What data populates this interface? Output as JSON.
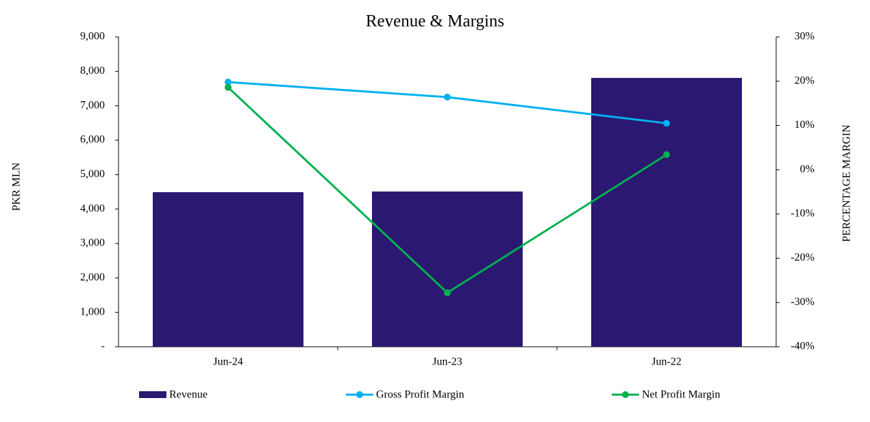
{
  "chart_data": {
    "type": "bar",
    "title": "Revenue  & Margins",
    "y_label": "PKR MLN",
    "y2_label": "PERCENTAGE MARGIN",
    "categories": [
      "Jun-24",
      "Jun-23",
      "Jun-22"
    ],
    "series": [
      {
        "name": "Revenue",
        "type": "bar",
        "color": "#2b1870",
        "values": [
          4490,
          4510,
          7810
        ]
      },
      {
        "name": "Gross Profit Margin",
        "type": "line",
        "axis": "y2",
        "color": "#00b0f0",
        "values": [
          19.8,
          16.4,
          10.5
        ]
      },
      {
        "name": "Net Profit Margin",
        "type": "line",
        "axis": "y2",
        "color": "#00b050",
        "values": [
          18.6,
          -27.8,
          3.4
        ]
      }
    ],
    "ylim": [
      0,
      9000
    ],
    "yticks": [
      {
        "value": 0,
        "label": "-"
      },
      {
        "value": 1000,
        "label": "1,000"
      },
      {
        "value": 2000,
        "label": "2,000"
      },
      {
        "value": 3000,
        "label": "3,000"
      },
      {
        "value": 4000,
        "label": "4,000"
      },
      {
        "value": 5000,
        "label": "5,000"
      },
      {
        "value": 6000,
        "label": "6,000"
      },
      {
        "value": 7000,
        "label": "7,000"
      },
      {
        "value": 8000,
        "label": "8,000"
      },
      {
        "value": 9000,
        "label": "9,000"
      }
    ],
    "y2lim": [
      -40,
      30
    ],
    "y2ticks": [
      {
        "value": -40,
        "label": "-40%"
      },
      {
        "value": -30,
        "label": "-30%"
      },
      {
        "value": -20,
        "label": "-20%"
      },
      {
        "value": -10,
        "label": "-10%"
      },
      {
        "value": 0,
        "label": "0%"
      },
      {
        "value": 10,
        "label": "10%"
      },
      {
        "value": 20,
        "label": "20%"
      },
      {
        "value": 30,
        "label": "30%"
      }
    ],
    "grid": false,
    "legend": "bottom"
  }
}
